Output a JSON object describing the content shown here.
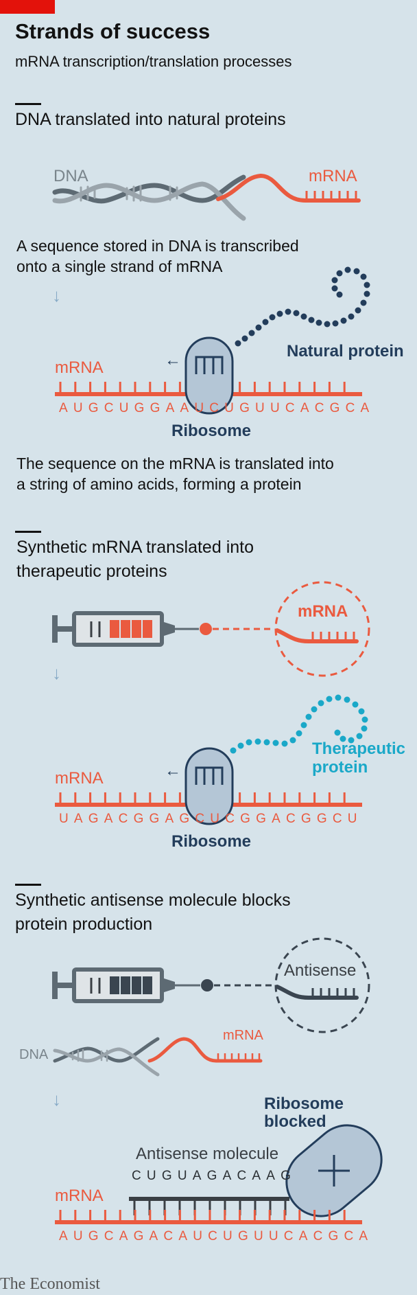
{
  "header": {
    "title": "Strands of success",
    "subtitle": "mRNA transcription/translation processes"
  },
  "section1": {
    "heading": "DNA translated into natural proteins",
    "dna_label": "DNA",
    "mrna_label": "mRNA",
    "caption1_line1": "A sequence stored in DNA is transcribed",
    "caption1_line2": "onto a single strand of mRNA",
    "arrow": "↓",
    "protein_label": "Natural protein",
    "mrna_label2": "mRNA",
    "direction_arrow": "←",
    "sequence": "AUGCUGGAAUCUGUUCACGCA",
    "ribosome_label": "Ribosome",
    "caption2_line1": "The sequence on the mRNA is translated into",
    "caption2_line2": "a string of amino acids, forming a protein"
  },
  "section2": {
    "heading_line1": "Synthetic mRNA translated into",
    "heading_line2": "therapeutic proteins",
    "bubble_label": "mRNA",
    "arrow": "↓",
    "protein_label_line1": "Therapeutic",
    "protein_label_line2": "protein",
    "mrna_label": "mRNA",
    "direction_arrow": "←",
    "sequence": "UAGACGGAGCUCGGACGGCU",
    "ribosome_label": "Ribosome"
  },
  "section3": {
    "heading_line1": "Synthetic antisense molecule blocks",
    "heading_line2": "protein production",
    "bubble_label": "Antisense",
    "dna_label": "DNA",
    "mrna_label": "mRNA",
    "arrow": "↓",
    "ribosome_line1": "Ribosome",
    "ribosome_line2": "blocked",
    "antisense_label": "Antisense molecule",
    "antisense_sequence": "CUGUAGACAAG",
    "mrna_label2": "mRNA",
    "sequence": "AUGCAGACAUCUGUUCACGCA"
  },
  "colors": {
    "background": "#d6e3ea",
    "red": "#ea5a3f",
    "navy": "#233d5b",
    "teal": "#1aa8c8",
    "grey": "#7a858c",
    "brand_red": "#e3120b"
  },
  "footer": {
    "brand": "The Economist"
  }
}
